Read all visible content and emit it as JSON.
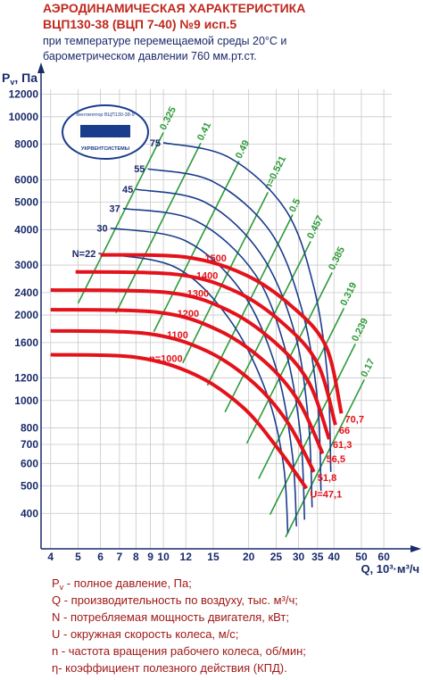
{
  "chart_data": {
    "type": "line",
    "title_lines": [
      "АЭРОДИНАМИЧЕСКАЯ ХАРАКТЕРИСТИКА",
      "ВЦП130-38 (ВЦП 7-40) №9 исп.5"
    ],
    "subtitle_lines": [
      "при температуре перемещаемой среды 20°С и",
      "барометрическом давлении 760 мм.рт.ст."
    ],
    "y_label": {
      "symbol": "P",
      "sub": "v",
      "unit": ", Па"
    },
    "x_label": "Q, 10³·м³/ч",
    "logo_text": [
      "Вентилятор ВЦП130-38-9",
      "УКРВЕНТСИСТЕМЫ"
    ],
    "x_scale": "log",
    "y_scale": "log",
    "grid": true,
    "xlim": [
      3.7,
      64
    ],
    "ylim": [
      300,
      12500
    ],
    "xticks": [
      4,
      5,
      6,
      7,
      8,
      9,
      10,
      12,
      15,
      20,
      25,
      30,
      35,
      40,
      50,
      60
    ],
    "yticks": [
      400,
      500,
      600,
      700,
      800,
      1000,
      1200,
      1600,
      2000,
      2400,
      3000,
      4000,
      5000,
      6000,
      8000,
      10000,
      12000
    ],
    "efficiency_color": "#2e9a3a",
    "power_color": "#1a3c8c",
    "speed_color": "#e3121b",
    "efficiency_lines": [
      {
        "label": "0.325",
        "x": [
          10,
          5
        ],
        "values": [
          8800,
          2200
        ]
      },
      {
        "label": "0.41",
        "x": [
          13.55,
          6.8
        ],
        "values": [
          8080,
          2035
        ]
      },
      {
        "label": "0.49",
        "x": [
          18.5,
          9.25
        ],
        "values": [
          6980,
          1745
        ]
      },
      {
        "label": "n=0.521",
        "x": [
          23.4,
          11.7
        ],
        "values": [
          5420,
          1355
        ]
      },
      {
        "label": "0.5",
        "x": [
          28.6,
          14.3
        ],
        "values": [
          4520,
          1130
        ]
      },
      {
        "label": "0.457",
        "x": [
          33.1,
          16.5
        ],
        "values": [
          3640,
          910
        ]
      },
      {
        "label": "0.385",
        "x": [
          39.4,
          19.7
        ],
        "values": [
          2825,
          706
        ]
      },
      {
        "label": "0.319",
        "x": [
          43.4,
          21.7
        ],
        "values": [
          2115,
          530
        ]
      },
      {
        "label": "0.239",
        "x": [
          47.6,
          23.8
        ],
        "values": [
          1582,
          396
        ]
      },
      {
        "label": "0.17",
        "x": [
          51.2,
          27
        ],
        "values": [
          1185,
          330
        ]
      }
    ],
    "power_lines": [
      {
        "label": "N=22",
        "x": [
          5.9,
          11,
          17,
          23,
          26.5,
          27.5
        ],
        "values": [
          3300,
          2950,
          1950,
          1080,
          600,
          340
        ]
      },
      {
        "label": "30",
        "x": [
          6.5,
          12,
          19,
          25,
          28.5,
          29.5
        ],
        "values": [
          4050,
          3650,
          2400,
          1300,
          650,
          360
        ]
      },
      {
        "label": "37",
        "x": [
          7.2,
          13,
          21,
          27,
          30.5,
          31.5
        ],
        "values": [
          4750,
          4300,
          2800,
          1500,
          750,
          380
        ]
      },
      {
        "label": "45",
        "x": [
          8,
          14,
          22,
          29,
          32.5,
          33.5
        ],
        "values": [
          5550,
          5000,
          3300,
          1750,
          850,
          420
        ]
      },
      {
        "label": "55",
        "x": [
          8.8,
          15,
          24,
          31,
          35,
          36
        ],
        "values": [
          6550,
          5900,
          3900,
          2050,
          1000,
          480
        ]
      },
      {
        "label": "75",
        "x": [
          10,
          17,
          27,
          34,
          38,
          39
        ],
        "values": [
          8100,
          7200,
          4700,
          2500,
          1200,
          560
        ]
      }
    ],
    "speed_lines": [
      {
        "label": "n=1000",
        "end_label": "U=47,1",
        "x": [
          4,
          8,
          13,
          19,
          25,
          32
        ],
        "values": [
          1450,
          1420,
          1230,
          950,
          690,
          490
        ]
      },
      {
        "label": "1100",
        "end_label": "51,8",
        "x": [
          4,
          8.8,
          14.3,
          20.9,
          27.5,
          34
        ],
        "values": [
          1760,
          1720,
          1490,
          1150,
          835,
          560
        ]
      },
      {
        "label": "1200",
        "end_label": "56,5",
        "x": [
          4,
          9.6,
          15.6,
          22.8,
          30,
          36.5
        ],
        "values": [
          2090,
          2045,
          1770,
          1370,
          994,
          650
        ]
      },
      {
        "label": "1300",
        "end_label": "61,3",
        "x": [
          4,
          10.4,
          16.9,
          24.7,
          32.5,
          38.5
        ],
        "values": [
          2450,
          2400,
          2080,
          1605,
          1165,
          730
        ]
      },
      {
        "label": "1400",
        "end_label": "66",
        "x": [
          4.9,
          11.2,
          18.2,
          26.6,
          35,
          40.5
        ],
        "values": [
          2840,
          2780,
          2410,
          1860,
          1350,
          820
        ]
      },
      {
        "label": "1500",
        "end_label": "70,7",
        "x": [
          6,
          12,
          19.5,
          28.5,
          37.5,
          42.5
        ],
        "values": [
          3260,
          3200,
          2770,
          2140,
          1550,
          900
        ]
      }
    ],
    "notes": [
      {
        "symbol": "P",
        "sub": "v",
        "text": " - полное давление, Па;"
      },
      "Q - производительность по воздуху, тыс. м³/ч;",
      "N - потребляемая мощность двигателя, кВт;",
      "U - окружная скорость колеса, м/с;",
      "n - частота вращения рабочего колеса, об/мин;",
      "η- коэффициент полезного действия (КПД)."
    ]
  }
}
